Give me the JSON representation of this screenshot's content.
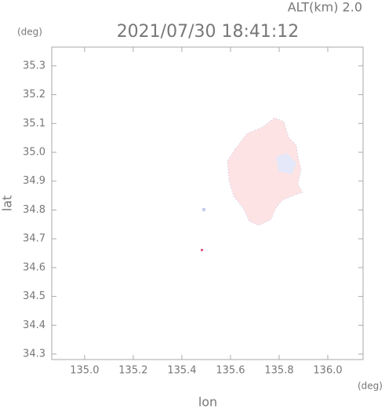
{
  "chart_data": {
    "type": "map",
    "title": "2021/07/30 18:41:12",
    "subtitle": "ALT(km) 2.0",
    "y_unit": "(deg)",
    "x_unit": "(deg)",
    "ylabel": "lat",
    "xlabel": "lon",
    "xlim": [
      134.865,
      136.145
    ],
    "ylim": [
      34.281,
      35.365
    ],
    "xticks": [
      {
        "value": 135,
        "label": "135.0"
      },
      135.2,
      135.4,
      135.6,
      135.8,
      {
        "value": 136,
        "label": "136.0"
      }
    ],
    "yticks": [
      34.3,
      34.4,
      34.5,
      34.6,
      34.7,
      34.8,
      34.9,
      {
        "value": 35,
        "label": "35.0"
      },
      35.1,
      35.2,
      35.3
    ]
  }
}
